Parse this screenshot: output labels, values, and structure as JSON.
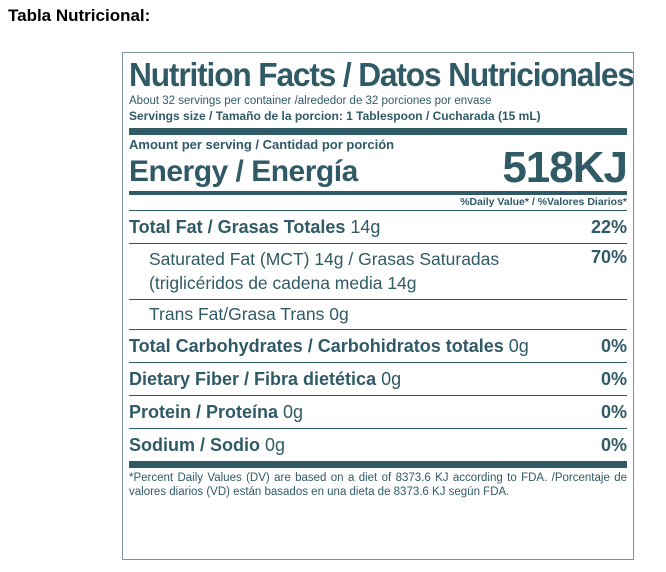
{
  "heading": "Tabla Nutricional:",
  "label": {
    "title": "Nutrition Facts / Datos Nutricionales",
    "servings_per_container": "About 32 servings per container /alrededor de 32 porciones por envase",
    "serving_size": "Servings size / Tamaño de la porcion:  1 Tablespoon / Cucharada (15 mL)",
    "amount_per_serving": "Amount per serving / Cantidad por porción",
    "energy_label": "Energy / Energía",
    "energy_value": "518KJ",
    "daily_value_header": "%Daily Value* / %Valores Diarios*",
    "rows": [
      {
        "name": "Total Fat / Grasas Totales",
        "amount": " 14g",
        "pct": "22%"
      },
      {
        "name": "Saturated Fat (MCT) 14g / Grasas Saturadas (triglicéridos de cadena media  14g",
        "pct": "70%"
      },
      {
        "name": "Trans Fat/Grasa Trans 0g",
        "pct": ""
      },
      {
        "name": "Total Carbohydrates / Carbohidratos totales",
        "amount": " 0g",
        "pct": "0%"
      },
      {
        "name": "Dietary Fiber / Fibra dietética",
        "amount": " 0g",
        "pct": "0%"
      },
      {
        "name": "Protein / Proteína",
        "amount": " 0g",
        "pct": "0%"
      },
      {
        "name": "Sodium / Sodio",
        "amount": " 0g",
        "pct": "0%"
      }
    ],
    "footnote": "*Percent Daily Values (DV) are based on a diet of 8373.6 KJ according to FDA. /Porcentaje de valores diarios (VD) están basados en una dieta de 8373.6 KJ según FDA."
  },
  "colors": {
    "label_text": "#2f5a66",
    "border": "#7a949c",
    "heading": "#000000"
  }
}
